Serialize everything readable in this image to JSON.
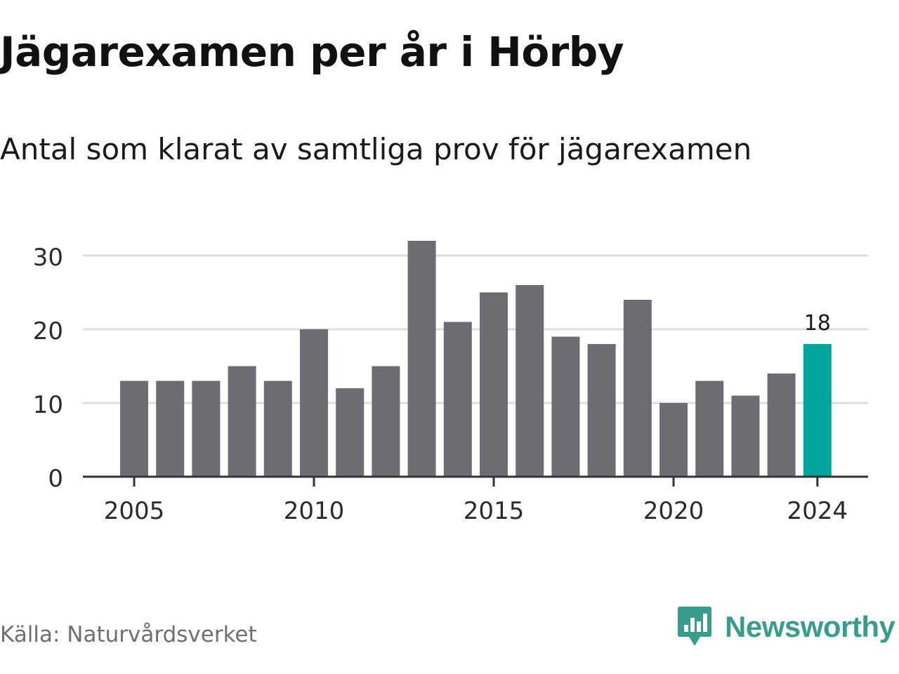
{
  "title": "Jägarexamen per år i Hörby",
  "subtitle": "Antal som klarat av samtliga prov för jägarexamen",
  "source": "Källa: Naturvårdsverket",
  "brand": {
    "name": "Newsworthy",
    "icon": "newsworthy-logo-icon"
  },
  "colors": {
    "bar": "#6d6c73",
    "highlight": "#00a69c",
    "grid": "#dddddd",
    "axis": "#333333",
    "brand": "#3a9c8c"
  },
  "chart_data": {
    "type": "bar",
    "title": "Jägarexamen per år i Hörby",
    "subtitle": "Antal som klarat av samtliga prov för jägarexamen",
    "xlabel": "",
    "ylabel": "",
    "categories": [
      2005,
      2006,
      2007,
      2008,
      2009,
      2010,
      2011,
      2012,
      2013,
      2014,
      2015,
      2016,
      2017,
      2018,
      2019,
      2020,
      2021,
      2022,
      2023,
      2024
    ],
    "values": [
      13,
      13,
      13,
      15,
      13,
      20,
      12,
      15,
      32,
      21,
      25,
      26,
      19,
      18,
      24,
      10,
      13,
      11,
      14,
      18
    ],
    "ylim": [
      0,
      32
    ],
    "yticks": [
      0,
      10,
      20,
      30
    ],
    "xticks": [
      "2005",
      "2010",
      "2015",
      "2020",
      "2024"
    ],
    "highlight": {
      "category": 2024,
      "label": "18"
    },
    "grid": true,
    "legend": "none"
  }
}
